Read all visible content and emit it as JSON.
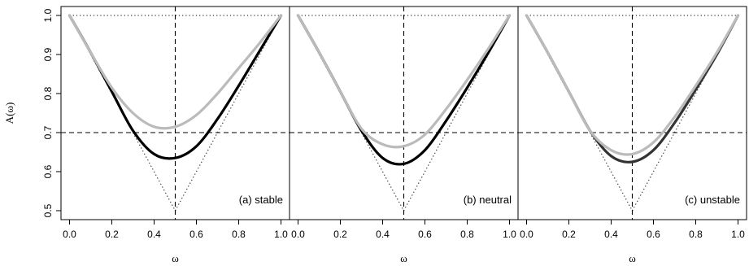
{
  "chart_data": {
    "type": "line",
    "ylabel": "A(ω)",
    "xlabel": "ω",
    "xlim": [
      0,
      1
    ],
    "ylim": [
      0.5,
      1.0
    ],
    "x_ticks": [
      "0.0",
      "0.2",
      "0.4",
      "0.6",
      "0.8",
      "1.0"
    ],
    "y_ticks": [
      "0.5",
      "0.6",
      "0.7",
      "0.8",
      "0.9",
      "1.0"
    ],
    "reference_lines": {
      "horizontal_dashed": 0.7,
      "vertical_dashed": 0.5,
      "upper_bound_dotted": 1.0,
      "lower_bound_dotted": "max(ω, 1-ω)"
    },
    "panels": [
      {
        "label": "(a) stable",
        "series": [
          {
            "color": "#000000",
            "width": 3.2,
            "x": [
              0.0,
              0.1,
              0.2,
              0.3,
              0.4,
              0.5,
              0.6,
              0.7,
              0.8,
              0.9,
              1.0
            ],
            "y": [
              1.0,
              0.905,
              0.805,
              0.705,
              0.645,
              0.635,
              0.665,
              0.735,
              0.82,
              0.91,
              1.0
            ]
          },
          {
            "color": "#bbbbbb",
            "width": 3.2,
            "x": [
              0.0,
              0.1,
              0.2,
              0.3,
              0.4,
              0.5,
              0.6,
              0.7,
              0.8,
              0.9,
              1.0
            ],
            "y": [
              1.0,
              0.905,
              0.815,
              0.75,
              0.715,
              0.715,
              0.745,
              0.8,
              0.865,
              0.93,
              1.0
            ]
          }
        ]
      },
      {
        "label": "(b) neutral",
        "series": [
          {
            "color": "#000000",
            "width": 3.2,
            "x": [
              0.0,
              0.1,
              0.2,
              0.3,
              0.4,
              0.5,
              0.6,
              0.7,
              0.8,
              0.9,
              1.0
            ],
            "y": [
              1.0,
              0.905,
              0.805,
              0.705,
              0.635,
              0.62,
              0.655,
              0.73,
              0.815,
              0.905,
              1.0
            ]
          },
          {
            "color": "#bbbbbb",
            "width": 3.2,
            "x": [
              0.0,
              0.1,
              0.2,
              0.3,
              0.4,
              0.5,
              0.6,
              0.7,
              0.8,
              0.9,
              1.0
            ],
            "y": [
              1.0,
              0.905,
              0.805,
              0.71,
              0.67,
              0.665,
              0.695,
              0.76,
              0.835,
              0.915,
              1.0
            ]
          }
        ]
      },
      {
        "label": "(c) unstable",
        "series": [
          {
            "color": "#333333",
            "width": 3.2,
            "x": [
              0.0,
              0.1,
              0.2,
              0.3,
              0.4,
              0.5,
              0.6,
              0.7,
              0.8,
              0.9,
              1.0
            ],
            "y": [
              1.0,
              0.905,
              0.805,
              0.705,
              0.64,
              0.625,
              0.655,
              0.725,
              0.81,
              0.9,
              1.0
            ]
          },
          {
            "color": "#bbbbbb",
            "width": 3.2,
            "x": [
              0.0,
              0.1,
              0.2,
              0.3,
              0.4,
              0.5,
              0.6,
              0.7,
              0.8,
              0.9,
              1.0
            ],
            "y": [
              1.0,
              0.905,
              0.805,
              0.705,
              0.655,
              0.645,
              0.675,
              0.74,
              0.82,
              0.905,
              1.0
            ]
          }
        ]
      }
    ]
  }
}
